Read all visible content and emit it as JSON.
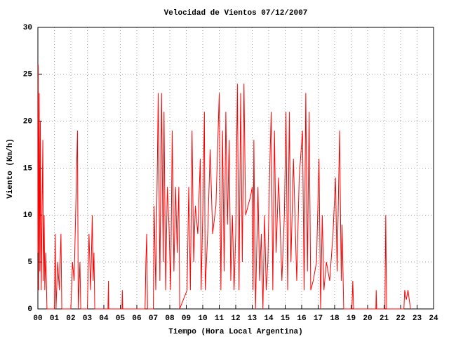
{
  "chart_data": {
    "type": "line",
    "title": "Velocidad de Vientos 07/12/2007",
    "x_label": "Tiempo (Hora Local Argentina)",
    "y_label": "Viento (Km/h)",
    "grid": true,
    "xlim": [
      0,
      24
    ],
    "ylim": [
      0,
      30
    ],
    "xticks": [
      {
        "value": 0,
        "label": "00"
      },
      {
        "value": 1,
        "label": "01"
      },
      {
        "value": 2,
        "label": "02"
      },
      {
        "value": 3,
        "label": "03"
      },
      {
        "value": 4,
        "label": "04"
      },
      {
        "value": 5,
        "label": "05"
      },
      {
        "value": 6,
        "label": "06"
      },
      {
        "value": 7,
        "label": "07"
      },
      {
        "value": 8,
        "label": "08"
      },
      {
        "value": 9,
        "label": "09"
      },
      10,
      11,
      12,
      13,
      14,
      15,
      16,
      17,
      18,
      19,
      20,
      21,
      22,
      23,
      24
    ],
    "yticks": [
      0,
      5,
      10,
      15,
      20,
      25,
      30
    ],
    "x": [
      0.0,
      0.02,
      0.05,
      0.08,
      0.12,
      0.15,
      0.2,
      0.25,
      0.3,
      0.33,
      0.38,
      0.42,
      0.48,
      0.55,
      1.0,
      1.05,
      1.1,
      1.2,
      1.3,
      1.4,
      1.45,
      2.0,
      2.1,
      2.2,
      2.3,
      2.4,
      2.45,
      2.55,
      2.6,
      3.0,
      3.1,
      3.2,
      3.3,
      3.35,
      3.4,
      3.45,
      4.25,
      4.28,
      4.3,
      5.1,
      5.12,
      5.15,
      6.5,
      6.55,
      6.6,
      6.65,
      7.0,
      7.05,
      7.15,
      7.25,
      7.3,
      7.4,
      7.5,
      7.6,
      7.65,
      7.75,
      7.85,
      7.95,
      8.05,
      8.15,
      8.25,
      8.35,
      8.45,
      8.55,
      8.6,
      9.05,
      9.15,
      9.25,
      9.35,
      9.45,
      9.55,
      9.7,
      9.85,
      9.9,
      10.0,
      10.1,
      10.15,
      10.3,
      10.45,
      10.6,
      10.8,
      11.0,
      11.1,
      11.2,
      11.3,
      11.4,
      11.5,
      11.6,
      11.7,
      11.8,
      11.9,
      12.0,
      12.1,
      12.2,
      12.3,
      12.4,
      12.5,
      12.6,
      12.9,
      13.0,
      13.05,
      13.1,
      13.2,
      13.35,
      13.45,
      13.55,
      13.65,
      13.75,
      13.85,
      13.95,
      14.05,
      14.15,
      14.25,
      14.35,
      14.45,
      14.6,
      14.8,
      14.95,
      15.05,
      15.15,
      15.25,
      15.35,
      15.5,
      15.7,
      15.85,
      16.05,
      16.15,
      16.25,
      16.35,
      16.45,
      16.55,
      16.7,
      16.9,
      17.05,
      17.15,
      17.25,
      17.35,
      17.5,
      17.7,
      17.9,
      18.05,
      18.15,
      18.3,
      18.4,
      18.45,
      18.55,
      19.05,
      19.1,
      19.15,
      20.5,
      20.52,
      20.55,
      21.05,
      21.1,
      21.15,
      22.2,
      22.25,
      22.35,
      22.45,
      22.6
    ],
    "series": [
      {
        "color": "#ff0000",
        "values": [
          6,
          26,
          2,
          23,
          4,
          20,
          2,
          10,
          18,
          3,
          10,
          2,
          6,
          0,
          0,
          8,
          0,
          5,
          2,
          8,
          0,
          0,
          5,
          3,
          11,
          19,
          0,
          5,
          0,
          0,
          8,
          2,
          10,
          3,
          6,
          0,
          0,
          3,
          0,
          0,
          2,
          0,
          0,
          5,
          8,
          0,
          0,
          11,
          2,
          16,
          23,
          3,
          23,
          5,
          21,
          2,
          13,
          9,
          2,
          19,
          4,
          13,
          6,
          13,
          0,
          2,
          13,
          2,
          19,
          5,
          11,
          8,
          16,
          2,
          10,
          21,
          2,
          8,
          17,
          8,
          11,
          23,
          2,
          19,
          4,
          21,
          9,
          18,
          3,
          10,
          2,
          8,
          24,
          2,
          23,
          5,
          24,
          10,
          12,
          13,
          2,
          18,
          0,
          13,
          3,
          8,
          0,
          10,
          2,
          5,
          14,
          21,
          2,
          19,
          6,
          14,
          3,
          10,
          21,
          2,
          21,
          5,
          16,
          3,
          14,
          19,
          2,
          23,
          4,
          21,
          2,
          3,
          5,
          16,
          0,
          10,
          2,
          5,
          3,
          8,
          14,
          4,
          19,
          3,
          9,
          0,
          0,
          3,
          0,
          0,
          2,
          0,
          0,
          10,
          0,
          0,
          2,
          1,
          2,
          0
        ]
      }
    ]
  }
}
